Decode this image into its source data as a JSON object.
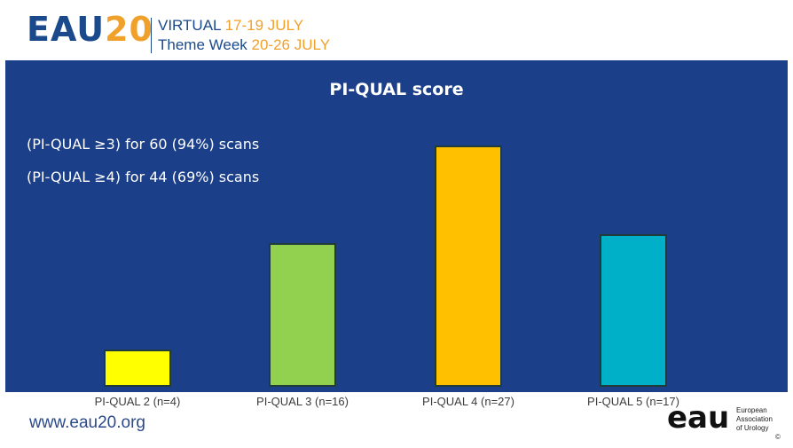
{
  "header": {
    "logo_eau": "EAU",
    "logo_num": "20",
    "line1_prefix": "VIRTUAL",
    "line1_dates": "17-19 JULY",
    "line2_prefix": "Theme Week",
    "line2_dates": "20-26 JULY"
  },
  "notes": [
    "(PI-QUAL ≥3) for 60 (94%) scans",
    "(PI-QUAL ≥4) for 44 (69%) scans"
  ],
  "footer": {
    "url": "www.eau20.org",
    "org_mark": "eau",
    "org_line1": "European",
    "org_line2": "Association",
    "org_line3": "of Urology",
    "copyright": "©"
  },
  "colors": {
    "panel": "#1b3f89",
    "bars": [
      "#ffff00",
      "#92d050",
      "#ffc000",
      "#00b0c8"
    ]
  },
  "chart_data": {
    "type": "bar",
    "title": "PI-QUAL score",
    "categories": [
      "PI-QUAL 2 (n=4)",
      "PI-QUAL 3 (n=16)",
      "PI-QUAL 4 (n=27)",
      "PI-QUAL 5 (n=17)"
    ],
    "values": [
      4,
      16,
      27,
      17
    ],
    "ylim": [
      0,
      30
    ],
    "grid": false,
    "legend": "none"
  }
}
